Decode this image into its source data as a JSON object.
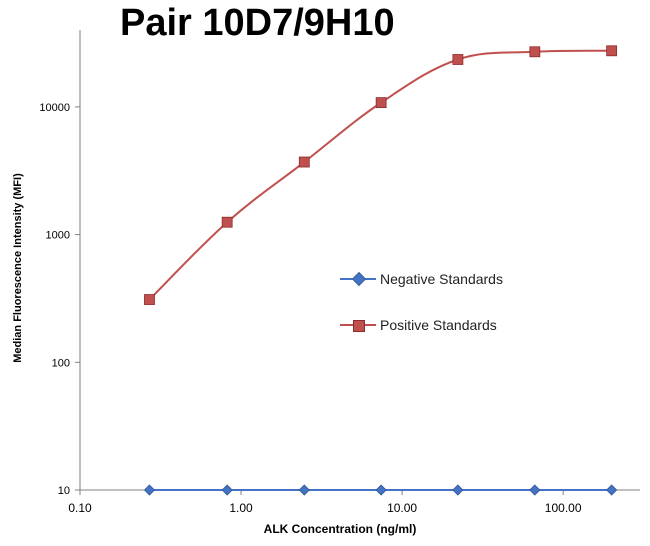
{
  "chart_data": {
    "type": "line",
    "title": "Pair 10D7/9H10",
    "xlabel": "ALK Concentration  (ng/ml)",
    "ylabel": "Median Fluorescence Intensity  (MFI)",
    "xscale": "log",
    "yscale": "log",
    "xlim": [
      0.1,
      300
    ],
    "ylim": [
      10,
      40000
    ],
    "xticks": [
      0.1,
      1,
      10,
      100
    ],
    "xtick_labels": [
      "0.10",
      "1.00",
      "10.00",
      "100.00"
    ],
    "yticks": [
      10,
      100,
      1000,
      10000
    ],
    "ytick_labels": [
      "10",
      "100",
      "1000",
      "10000"
    ],
    "grid": false,
    "legend_position": "center-right",
    "series": [
      {
        "name": "Negative Standards",
        "color": "#4472c4",
        "marker": "diamond",
        "x": [
          0.27,
          0.82,
          2.47,
          7.41,
          22.2,
          66.7,
          200
        ],
        "y": [
          10,
          10,
          10,
          10,
          10,
          10,
          10
        ]
      },
      {
        "name": "Positive Standards",
        "color": "#c0504d",
        "marker": "square",
        "x": [
          0.27,
          0.82,
          2.47,
          7.41,
          22.2,
          66.7,
          200
        ],
        "y": [
          310,
          1250,
          3700,
          10800,
          23500,
          27000,
          27500
        ]
      }
    ]
  }
}
